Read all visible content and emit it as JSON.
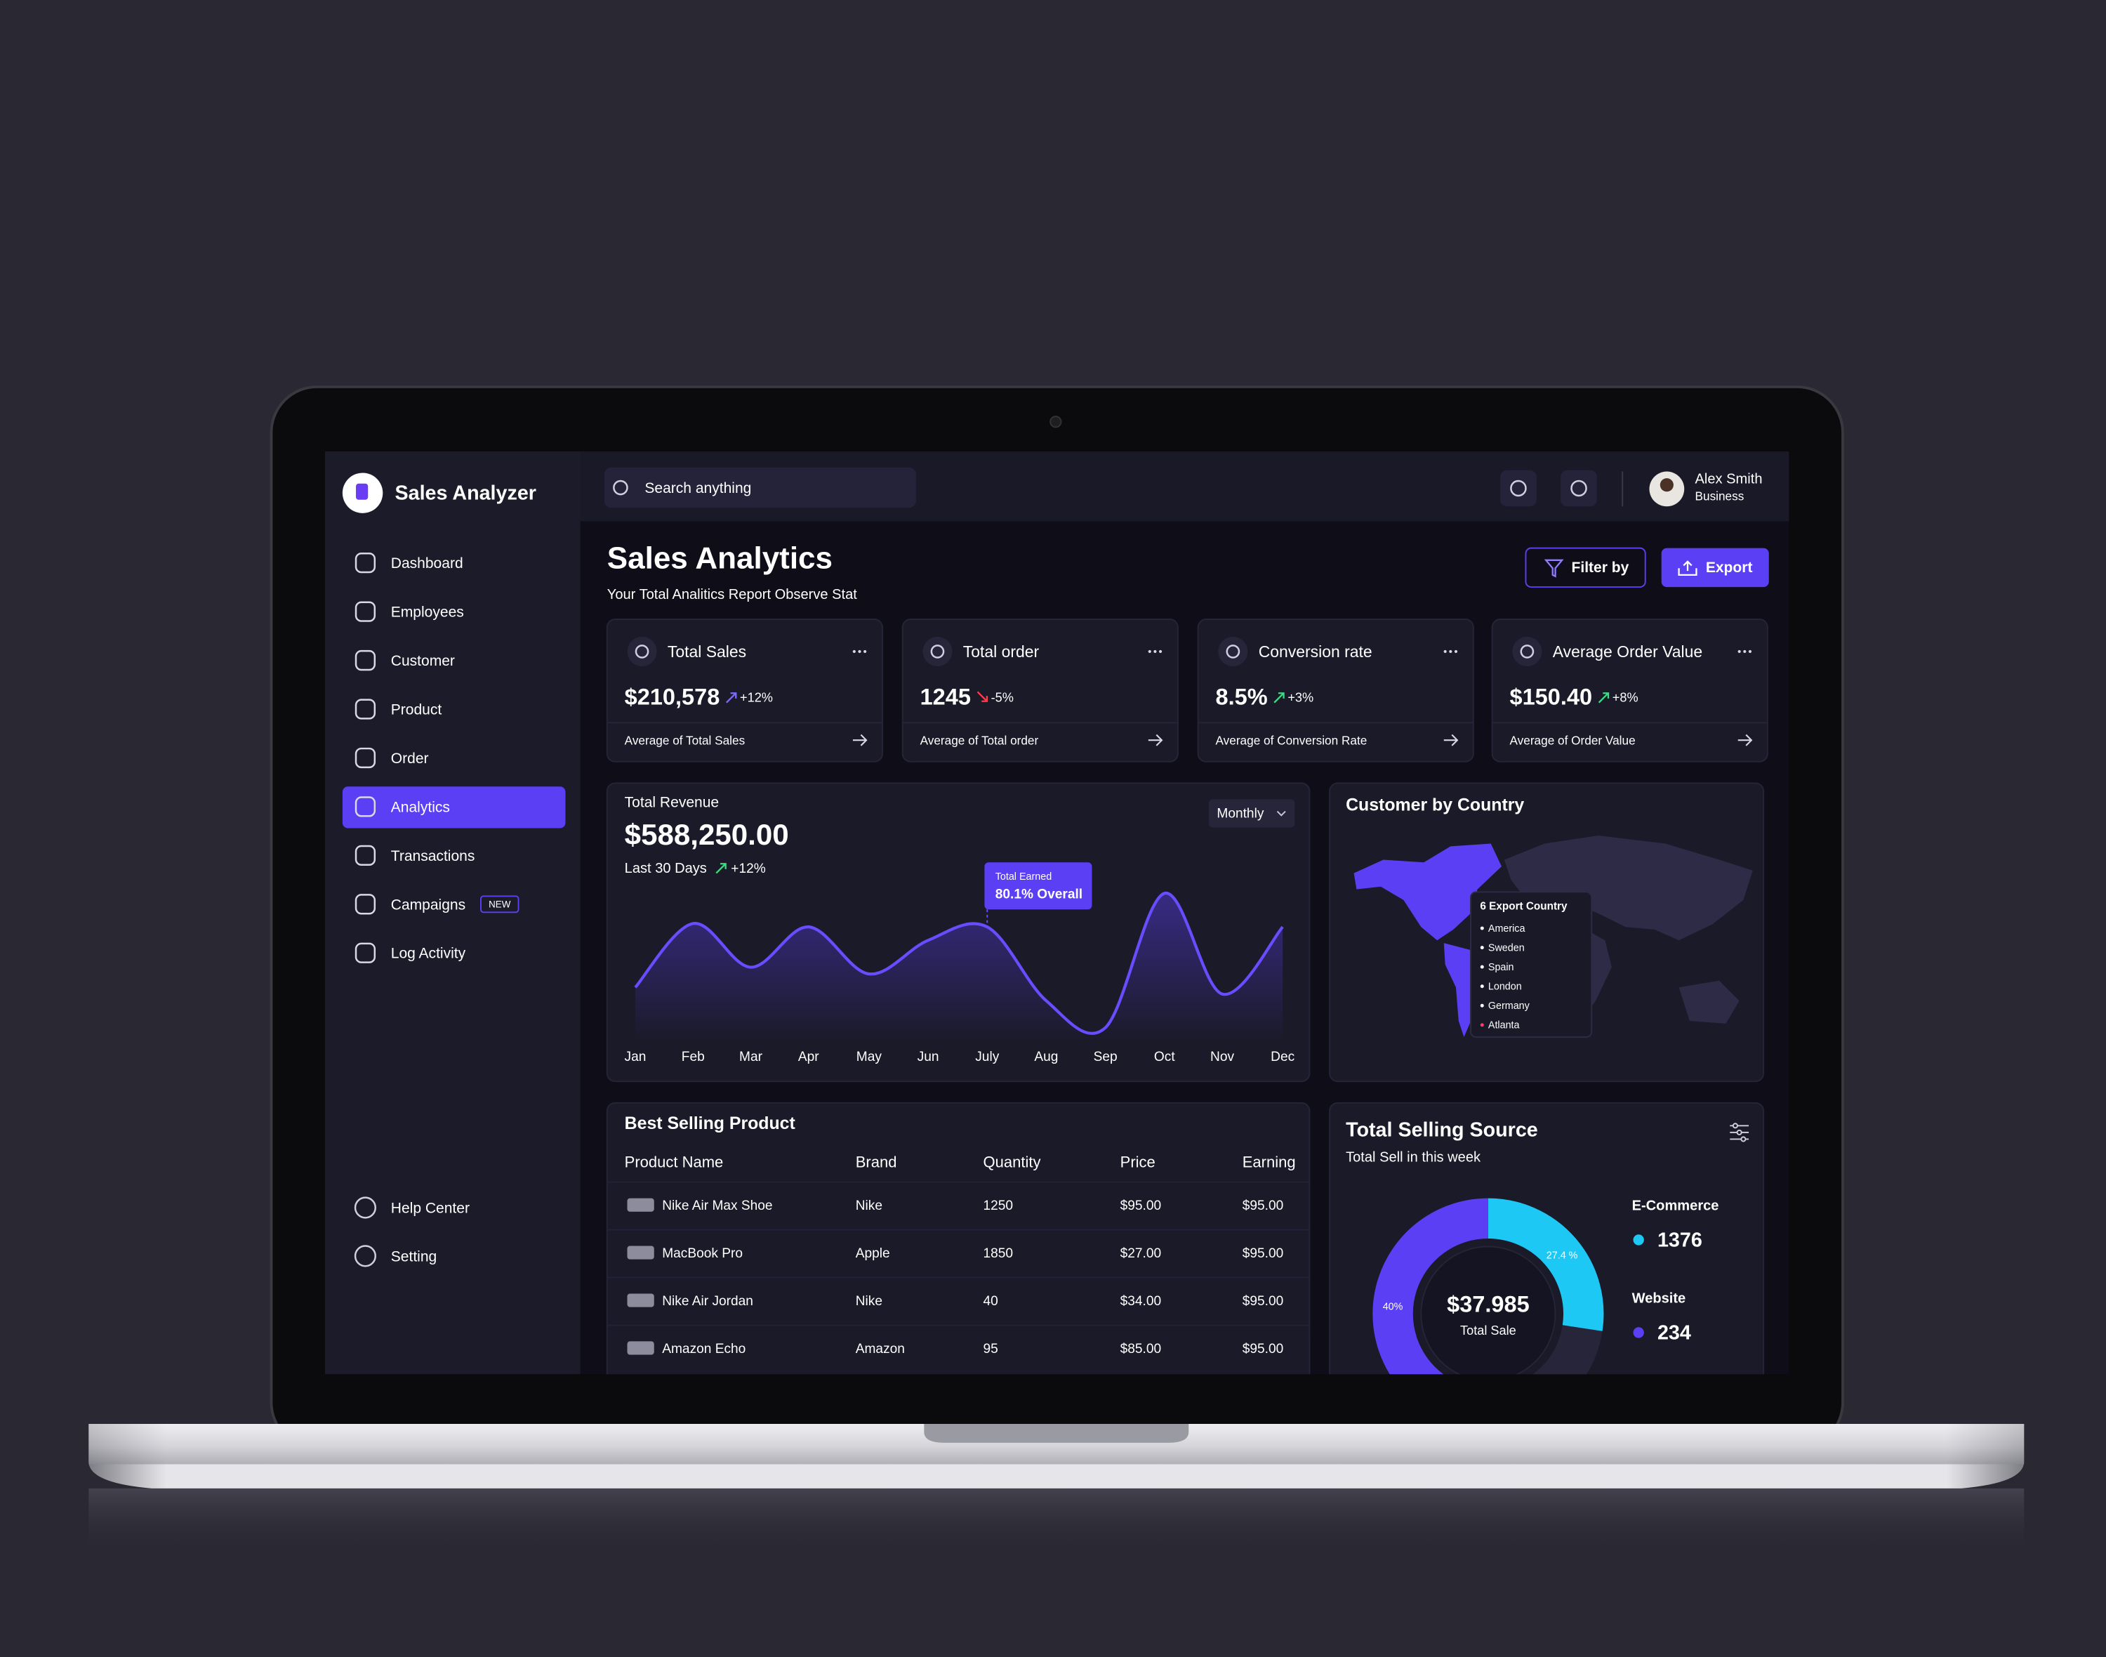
{
  "app": {
    "name": "Sales Analyzer"
  },
  "search": {
    "placeholder": "Search anything"
  },
  "user": {
    "name": "Alex Smith",
    "role": "Business"
  },
  "nav": [
    "Dashboard",
    "Employees",
    "Customer",
    "Product",
    "Order",
    "Analytics",
    "Transactions",
    "Campaigns",
    "Log Activity"
  ],
  "nav_badge": "NEW",
  "nav_bottom": [
    "Help Center",
    "Setting"
  ],
  "header": {
    "title": "Sales Analytics",
    "subtitle": "Your Total Analitics Report Observe Stat",
    "filter": "Filter by",
    "export": "Export"
  },
  "stats": [
    {
      "title": "Total Sales",
      "value": "$210,578",
      "change": "+12%",
      "color": "#7b6cff",
      "footer": "Average of Total Sales"
    },
    {
      "title": "Total order",
      "value": "1245",
      "change": "-5%",
      "color": "#ff3b4e",
      "footer": "Average of Total order"
    },
    {
      "title": "Conversion rate",
      "value": "8.5%",
      "change": "+3%",
      "color": "#3ddc84",
      "footer": "Average of Conversion Rate"
    },
    {
      "title": "Average Order Value",
      "value": "$150.40",
      "change": "+8%",
      "color": "#3ddc84",
      "footer": "Average of Order Value"
    }
  ],
  "revenue": {
    "total": "$588,250.00",
    "period": "Last 30 Days",
    "change": "+12%",
    "dropdown": "Monthly",
    "tooltip_title": "Total Earned",
    "tooltip_value": "80.1% Overall"
  },
  "country": {
    "title": "Customer by Country",
    "tooltip": "6 Export Country",
    "list": [
      "America",
      "Sweden",
      "Spain",
      "London",
      "Germany",
      "Atlanta"
    ]
  },
  "products": {
    "title": "Best Selling Product",
    "columns": [
      "Product Name",
      "Brand",
      "Quantity",
      "Price",
      "Earning"
    ],
    "rows": [
      [
        "Nike Air Max Shoe",
        "Nike",
        "1250",
        "$95.00",
        "$95.00"
      ],
      [
        "MacBook Pro",
        "Apple",
        "1850",
        "$27.00",
        "$95.00"
      ],
      [
        "Nike Air Jordan",
        "Nike",
        "40",
        "$34.00",
        "$95.00"
      ],
      [
        "Amazon Echo",
        "Amazon",
        "95",
        "$85.00",
        "$95.00"
      ]
    ]
  },
  "source": {
    "title": "Total Selling Source",
    "subtitle": "Total Sell in this week",
    "total": "$37.985",
    "total_label": "Total Sale",
    "items": [
      {
        "name": "E-Commerce",
        "value": "1376"
      },
      {
        "name": "Website",
        "value": "234"
      }
    ]
  },
  "chart_data": [
    {
      "type": "line",
      "title": "Total Revenue",
      "categories": [
        "Jan",
        "Feb",
        "Mar",
        "Apr",
        "May",
        "Jun",
        "July",
        "Aug",
        "Sep",
        "Oct",
        "Nov",
        "Dec"
      ],
      "values": [
        32,
        70,
        44,
        68,
        40,
        60,
        68,
        24,
        8,
        88,
        28,
        68
      ],
      "ylim": [
        0,
        100
      ],
      "color": "#6a4cff"
    },
    {
      "type": "pie",
      "values": [
        27.4,
        40
      ],
      "value_labels": [
        "27.4 %",
        "40%"
      ],
      "colors": [
        "#1ec8f5",
        "#5b3ff5"
      ]
    }
  ]
}
